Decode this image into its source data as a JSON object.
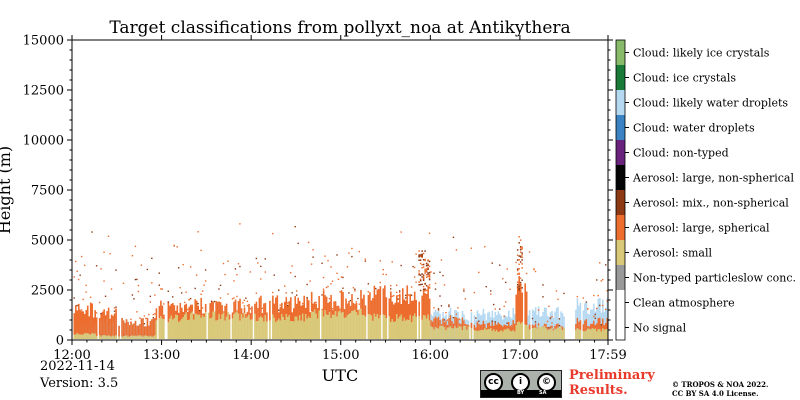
{
  "chart_data": {
    "type": "heatmap",
    "title": "Target classifications from pollyxt_noa at Antikythera",
    "xlabel": "UTC",
    "ylabel": "Height (m)",
    "xlim": [
      "12:00",
      "17:59"
    ],
    "ylim": [
      0,
      15000
    ],
    "x_ticks": [
      "12:00",
      "13:00",
      "14:00",
      "15:00",
      "16:00",
      "17:00",
      "17:59"
    ],
    "y_ticks": [
      "0",
      "2500",
      "5000",
      "7500",
      "10000",
      "12500",
      "15000"
    ],
    "x_tick_minutes": [
      0,
      60,
      120,
      180,
      240,
      300,
      359
    ],
    "y_tick_values": [
      0,
      2500,
      5000,
      7500,
      10000,
      12500,
      15000
    ],
    "categories": [
      {
        "label": "Cloud: likely ice crystals",
        "color": "#87bb6a"
      },
      {
        "label": "Cloud: ice crystals",
        "color": "#1a7a37"
      },
      {
        "label": "Cloud: likely water droplets",
        "color": "#b6d9f2"
      },
      {
        "label": "Cloud: water droplets",
        "color": "#3b83c2"
      },
      {
        "label": "Cloud: non-typed",
        "color": "#6a237d"
      },
      {
        "label": "Aerosol: large, non-spherical",
        "color": "#050505"
      },
      {
        "label": "Aerosol: mix., non-spherical",
        "color": "#8d3a14"
      },
      {
        "label": "Aerosol: large, spherical",
        "color": "#ec6d2e"
      },
      {
        "label": "Aerosol: small",
        "color": "#d8c877"
      },
      {
        "label": "Non-typed particleslow conc.",
        "color": "#999999"
      },
      {
        "label": "Clean atmosphere",
        "color": "#ffffff"
      },
      {
        "label": "No signal",
        "color": "#ffffff"
      }
    ],
    "profile_segments": [
      {
        "start_min": 0,
        "end_min": 16,
        "small_top_m": 300,
        "spherical_top_m": 1500,
        "water_top_m": 800
      },
      {
        "start_min": 16,
        "end_min": 30,
        "small_top_m": 200,
        "spherical_top_m": 1300,
        "water_top_m": 900
      },
      {
        "start_min": 30,
        "end_min": 56,
        "small_top_m": 200,
        "spherical_top_m": 900,
        "water_top_m": 900
      },
      {
        "start_min": 56,
        "end_min": 75,
        "small_top_m": 1100,
        "spherical_top_m": 1600,
        "water_top_m": 0
      },
      {
        "start_min": 75,
        "end_min": 120,
        "small_top_m": 1200,
        "spherical_top_m": 1700,
        "water_top_m": 0
      },
      {
        "start_min": 120,
        "end_min": 160,
        "small_top_m": 1100,
        "spherical_top_m": 1800,
        "water_top_m": 0
      },
      {
        "start_min": 160,
        "end_min": 200,
        "small_top_m": 1300,
        "spherical_top_m": 2000,
        "water_top_m": 0
      },
      {
        "start_min": 200,
        "end_min": 240,
        "small_top_m": 1100,
        "spherical_top_m": 2200,
        "water_top_m": 0
      },
      {
        "start_min": 240,
        "end_min": 267,
        "small_top_m": 600,
        "spherical_top_m": 1000,
        "water_top_m": 1300
      },
      {
        "start_min": 267,
        "end_min": 297,
        "small_top_m": 500,
        "spherical_top_m": 800,
        "water_top_m": 1300
      },
      {
        "start_min": 297,
        "end_min": 305,
        "small_top_m": 800,
        "spherical_top_m": 2600,
        "water_top_m": 0
      },
      {
        "start_min": 305,
        "end_min": 330,
        "small_top_m": 600,
        "spherical_top_m": 700,
        "water_top_m": 1400
      },
      {
        "start_min": 337,
        "end_min": 359,
        "small_top_m": 500,
        "spherical_top_m": 900,
        "water_top_m": 1700
      }
    ],
    "grid": false,
    "legend": "right colorbar"
  },
  "meta": {
    "date": "2022-11-14",
    "version": "Version: 3.5"
  },
  "footer": {
    "preliminary_line1": "Preliminary",
    "preliminary_line2": "Results.",
    "copyright_line1": "© TROPOS & NOA 2022.",
    "copyright_line2": "CC BY SA 4.0 License.",
    "cc_badge_by": "BY",
    "cc_badge_sa": "SA",
    "cc_badge_cc": "cc",
    "cc_badge_by_icon": "i",
    "cc_badge_sa_icon": "©"
  }
}
